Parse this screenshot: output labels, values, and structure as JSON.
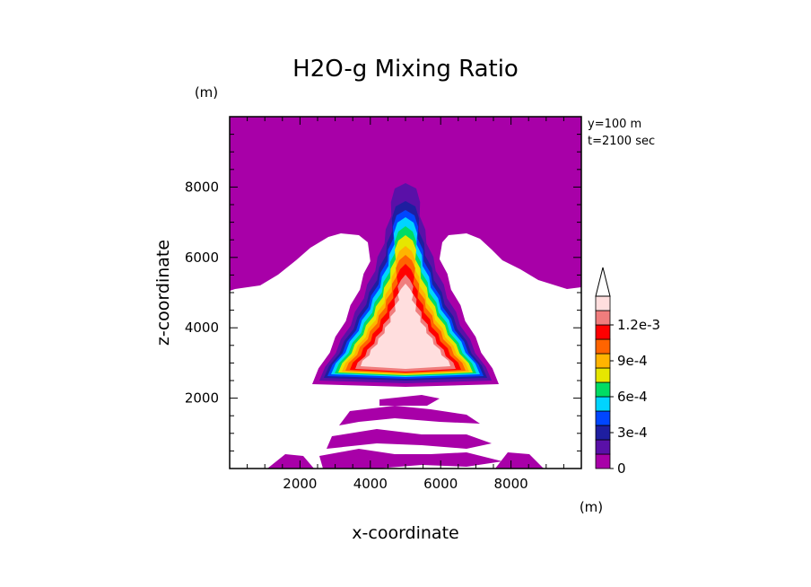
{
  "chart_data": {
    "type": "heatmap",
    "title": "H2O-g Mixing Ratio",
    "xlabel": "x-coordinate",
    "ylabel": "z-coordinate",
    "x_unit": "(m)",
    "y_unit": "(m)",
    "xlim": [
      0,
      10000
    ],
    "ylim": [
      0,
      10000
    ],
    "x_ticks": [
      "2000",
      "4000",
      "6000",
      "8000"
    ],
    "y_ticks": [
      "2000",
      "4000",
      "6000",
      "8000"
    ],
    "annotations": [
      "y=100 m",
      "t=2100 sec"
    ],
    "colorbar": {
      "levels": [
        0,
        0.0003,
        0.0006,
        0.0009,
        0.0012
      ],
      "labels": [
        "0",
        "3e-4",
        "6e-4",
        "9e-4",
        "1.2e-3"
      ],
      "extend": "max",
      "colors": [
        "#a800a8",
        "#5a10a8",
        "#1e1ea0",
        "#0046ff",
        "#00d4ff",
        "#00dc64",
        "#e6e600",
        "#ffb400",
        "#ff6400",
        "#ff0000",
        "#f07d7d",
        "#ffdede"
      ]
    },
    "fields": [
      {
        "name": "upper-layer",
        "level": 0
      },
      {
        "name": "central-plume",
        "level_range": [
          0,
          0.0014
        ]
      },
      {
        "name": "left-side-lobe",
        "level_range": [
          0,
          0.0004
        ]
      },
      {
        "name": "right-side-lobe",
        "level_range": [
          0,
          0.0004
        ]
      },
      {
        "name": "lower-bands",
        "level": 0
      }
    ]
  }
}
